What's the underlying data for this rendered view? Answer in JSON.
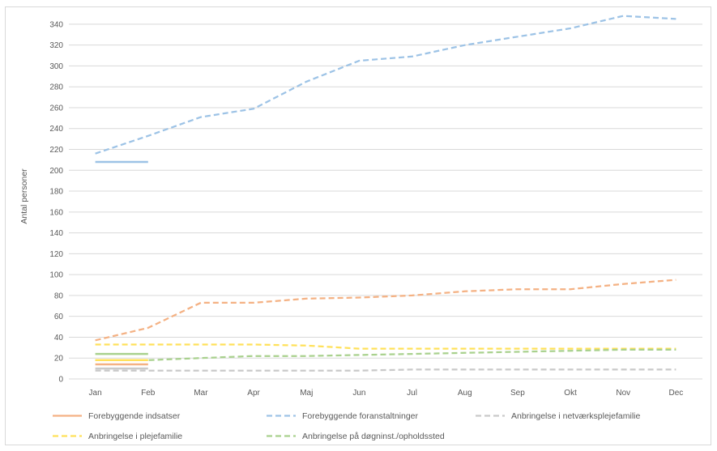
{
  "chart_data": {
    "type": "line",
    "title": "",
    "xlabel": "",
    "ylabel": "Antal personer",
    "ylim": [
      0,
      350
    ],
    "yticks": [
      0,
      20,
      40,
      60,
      80,
      100,
      120,
      140,
      160,
      180,
      200,
      220,
      240,
      260,
      280,
      300,
      320,
      340
    ],
    "grid": true,
    "legend_position": "bottom",
    "categories": [
      "Jan",
      "Feb",
      "Mar",
      "Apr",
      "Maj",
      "Jun",
      "Jul",
      "Aug",
      "Sep",
      "Okt",
      "Nov",
      "Dec"
    ],
    "series": [
      {
        "name": "Forebyggende indsatser",
        "style": "solid",
        "color": "#f4b183",
        "values": [
          14,
          14,
          null,
          null,
          null,
          null,
          null,
          null,
          null,
          null,
          null,
          null
        ]
      },
      {
        "name": "Forebyggende foranstaltninger",
        "style": "dashed",
        "color": "#9dc3e6",
        "values": [
          216,
          233,
          251,
          259,
          285,
          305,
          309,
          320,
          328,
          336,
          348,
          345
        ]
      },
      {
        "name": "Anbringelse i netværksplejefamilie",
        "style": "dashed",
        "color": "#c9c9c9",
        "values": [
          8,
          8,
          8,
          8,
          8,
          8,
          9,
          9,
          9,
          9,
          9,
          9
        ]
      },
      {
        "name": "Anbringelse i plejefamilie",
        "style": "dashed",
        "color": "#ffe15a",
        "values": [
          33,
          33,
          33,
          33,
          32,
          29,
          29,
          29,
          29,
          29,
          29,
          29
        ]
      },
      {
        "name": "Anbringelse på døgninst./opholdssted",
        "style": "dashed",
        "color": "#a9d18e",
        "values": [
          18,
          18,
          20,
          22,
          22,
          23,
          24,
          25,
          26,
          27,
          28,
          28
        ]
      },
      {
        "name": "",
        "style": "dashed",
        "color": "#f4b183",
        "values": [
          37,
          49,
          73,
          73,
          77,
          78,
          80,
          84,
          86,
          86,
          91,
          95
        ]
      },
      {
        "name": "",
        "style": "solid",
        "color": "#9dc3e6",
        "values": [
          208,
          208,
          null,
          null,
          null,
          null,
          null,
          null,
          null,
          null,
          null,
          null
        ]
      },
      {
        "name": "",
        "style": "solid",
        "color": "#a9d18e",
        "values": [
          24,
          24,
          null,
          null,
          null,
          null,
          null,
          null,
          null,
          null,
          null,
          null
        ]
      },
      {
        "name": "",
        "style": "solid",
        "color": "#c9c9c9",
        "values": [
          10,
          10,
          null,
          null,
          null,
          null,
          null,
          null,
          null,
          null,
          null,
          null
        ]
      },
      {
        "name": "",
        "style": "solid",
        "color": "#ffe15a",
        "values": [
          18,
          18,
          null,
          null,
          null,
          null,
          null,
          null,
          null,
          null,
          null,
          null
        ]
      }
    ],
    "legend": [
      {
        "label": "Forebyggende indsatser",
        "style": "solid",
        "color": "#f4b183"
      },
      {
        "label": "Forebyggende foranstaltninger",
        "style": "dashed",
        "color": "#9dc3e6"
      },
      {
        "label": "Anbringelse i netværksplejefamilie",
        "style": "dashed",
        "color": "#c9c9c9"
      },
      {
        "label": "Anbringelse i plejefamilie",
        "style": "dashed",
        "color": "#ffe15a"
      },
      {
        "label": "Anbringelse på døgninst./opholdssted",
        "style": "dashed",
        "color": "#a9d18e"
      }
    ]
  }
}
